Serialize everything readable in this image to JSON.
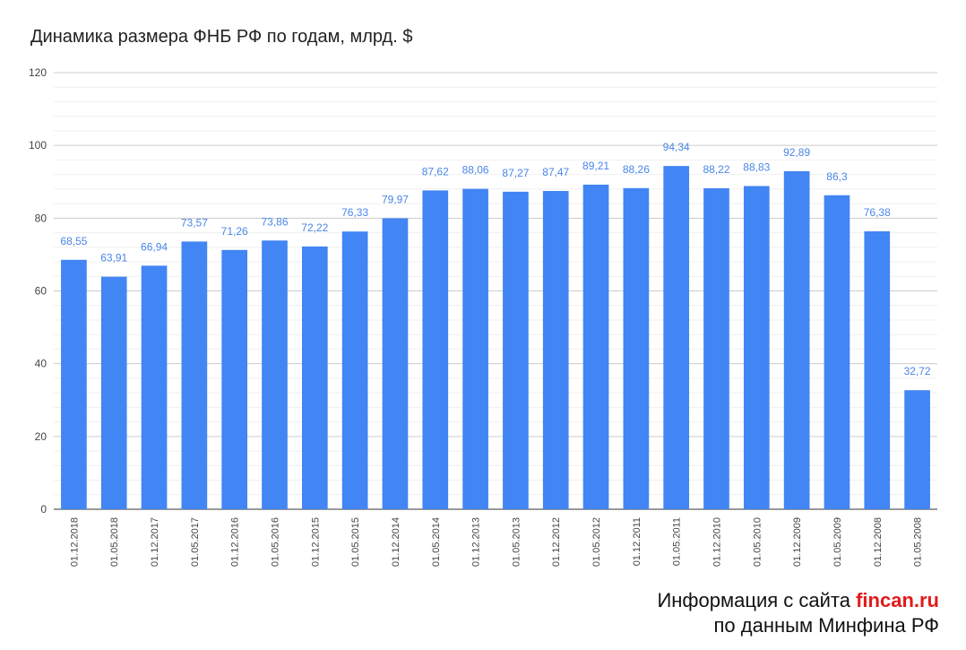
{
  "chart_data": {
    "type": "bar",
    "title": "Динамика размера ФНБ РФ по годам, млрд. $",
    "xlabel": "",
    "ylabel": "",
    "ylim": [
      0,
      120
    ],
    "yticks": [
      0,
      20,
      40,
      60,
      80,
      100,
      120
    ],
    "grid": true,
    "legend": "none",
    "bar_color": "#4285f4",
    "label_color": "#4a86e8",
    "categories": [
      "01.12.2018",
      "01.05.2018",
      "01.12.2017",
      "01.05.2017",
      "01.12.2016",
      "01.05.2016",
      "01.12.2015",
      "01.05.2015",
      "01.12.2014",
      "01.05.2014",
      "01.12.2013",
      "01.05.2013",
      "01.12.2012",
      "01.05.2012",
      "01.12.2011",
      "01.05.2011",
      "01.12.2010",
      "01.05.2010",
      "01.12.2009",
      "01.05.2009",
      "01.12.2008",
      "01.05.2008"
    ],
    "values": [
      68.55,
      63.91,
      66.94,
      73.57,
      71.26,
      73.86,
      72.22,
      76.33,
      79.97,
      87.62,
      88.06,
      87.27,
      87.47,
      89.21,
      88.26,
      94.34,
      88.22,
      88.83,
      92.89,
      86.3,
      76.38,
      32.72
    ],
    "value_labels": [
      "68,55",
      "63,91",
      "66,94",
      "73,57",
      "71,26",
      "73,86",
      "72,22",
      "76,33",
      "79,97",
      "87,62",
      "88,06",
      "87,27",
      "87,47",
      "89,21",
      "88,26",
      "94,34",
      "88,22",
      "88,83",
      "92,89",
      "86,3",
      "76,38",
      "32,72"
    ]
  },
  "credit": {
    "line1_prefix": "Информация с сайта ",
    "line1_site": "fincan.ru",
    "line2": "по данным Минфина РФ",
    "site_color": "#e01b1b"
  }
}
